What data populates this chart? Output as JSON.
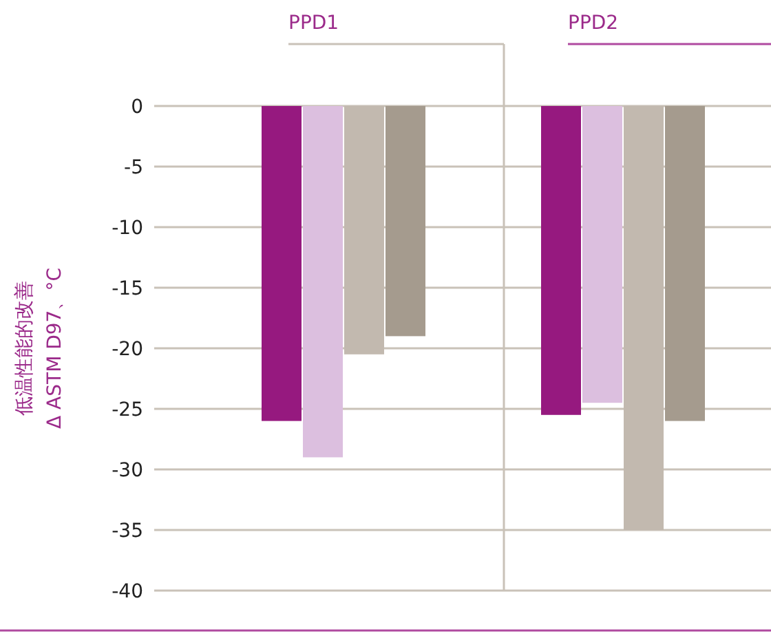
{
  "chart_data": {
    "type": "bar",
    "ylabel": "低温性能的改善\nΔ ASTM D97、°C",
    "categories": [
      "PPD1",
      "PPD2"
    ],
    "series": [
      {
        "color": "#96197f",
        "values": [
          -26,
          -25.5
        ]
      },
      {
        "color": "#dcbfdf",
        "values": [
          -29,
          -24.5
        ]
      },
      {
        "color": "#c2b9af",
        "values": [
          -20.5,
          -35
        ]
      },
      {
        "color": "#a59b8e",
        "values": [
          -19,
          -26
        ]
      }
    ],
    "ylim": [
      -40,
      0
    ],
    "yticks": [
      0,
      -5,
      -10,
      -15,
      -20,
      -25,
      -30,
      -35,
      -40
    ],
    "grid": "y"
  }
}
